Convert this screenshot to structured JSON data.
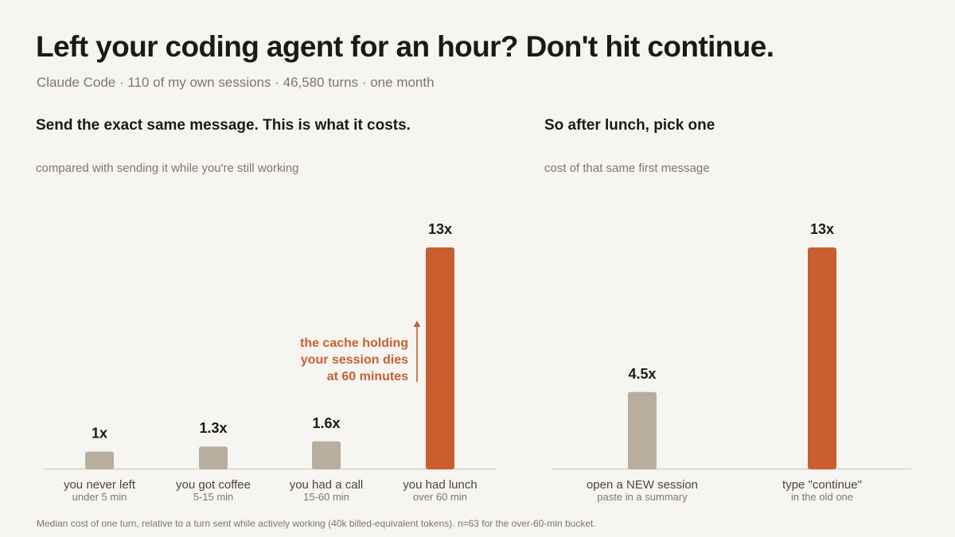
{
  "title": "Left your coding agent for an hour? Don't hit continue.",
  "subtitle": "Claude Code · 110 of my own sessions · 46,580 turns · one month",
  "footnote": "Median cost of one turn, relative to a turn sent while actively working (40k billed-equivalent tokens). n=63 for the over-60-min bucket.",
  "colors": {
    "neutral": "#b8ae9e",
    "accent": "#c95f31",
    "baseline": "#d6cfc2",
    "text": "#1c1a17",
    "muted": "#7c766e"
  },
  "chart_data": [
    {
      "type": "bar",
      "title": "Send the exact same message. This is what it costs.",
      "subtitle": "compared with sending it while you're still working",
      "ylim": [
        0,
        13
      ],
      "categories": [
        "you never left",
        "you got coffee",
        "you had a call",
        "you had lunch"
      ],
      "sublabels": [
        "under 5 min",
        "5-15 min",
        "15-60 min",
        "over 60 min"
      ],
      "values": [
        1,
        1.3,
        1.6,
        13
      ],
      "value_labels": [
        "1x",
        "1.3x",
        "1.6x",
        "13x"
      ],
      "highlight": [
        false,
        false,
        false,
        true
      ],
      "annotation": [
        "the cache holding",
        "your session dies",
        "at 60 minutes"
      ]
    },
    {
      "type": "bar",
      "title": "So after lunch, pick one",
      "subtitle": "cost of that same first message",
      "ylim": [
        0,
        13
      ],
      "categories": [
        "open a NEW session",
        "type \"continue\""
      ],
      "sublabels": [
        "paste in a summary",
        "in the old one"
      ],
      "values": [
        4.5,
        13
      ],
      "value_labels": [
        "4.5x",
        "13x"
      ],
      "highlight": [
        false,
        true
      ]
    }
  ]
}
